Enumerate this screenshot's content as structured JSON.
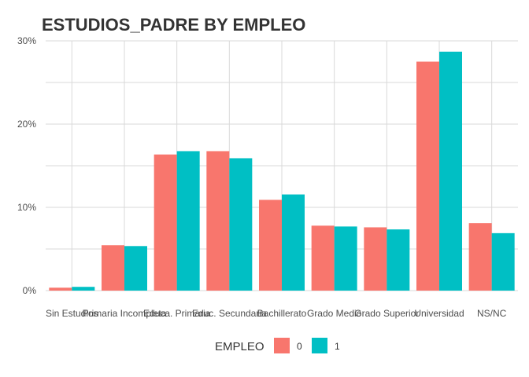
{
  "chart_data": {
    "type": "bar",
    "title": "ESTUDIOS_PADRE BY EMPLEO",
    "xlabel": "",
    "ylabel": "",
    "categories": [
      "Sin Estudios",
      "Primaria Incompleta",
      "Educa. Primaria",
      "Educ. Secundaria",
      "Bachillerato",
      "Grado Medio",
      "Grado Superior",
      "Universidad",
      "NS/NC"
    ],
    "series": [
      {
        "name": "0",
        "color": "#F8766D",
        "values": [
          0.35,
          5.45,
          16.35,
          16.75,
          10.9,
          7.8,
          7.6,
          27.5,
          8.1
        ]
      },
      {
        "name": "1",
        "color": "#00BFC4",
        "values": [
          0.45,
          5.35,
          16.75,
          15.9,
          11.55,
          7.7,
          7.35,
          28.7,
          6.9
        ]
      }
    ],
    "ylim": [
      0,
      30
    ],
    "yticks": [
      0,
      10,
      20,
      30
    ],
    "ytick_labels": [
      "0%",
      "10%",
      "20%",
      "30%"
    ],
    "grid": true,
    "legend": {
      "title": "EMPLEO",
      "position": "bottom",
      "labels": [
        "0",
        "1"
      ]
    }
  }
}
